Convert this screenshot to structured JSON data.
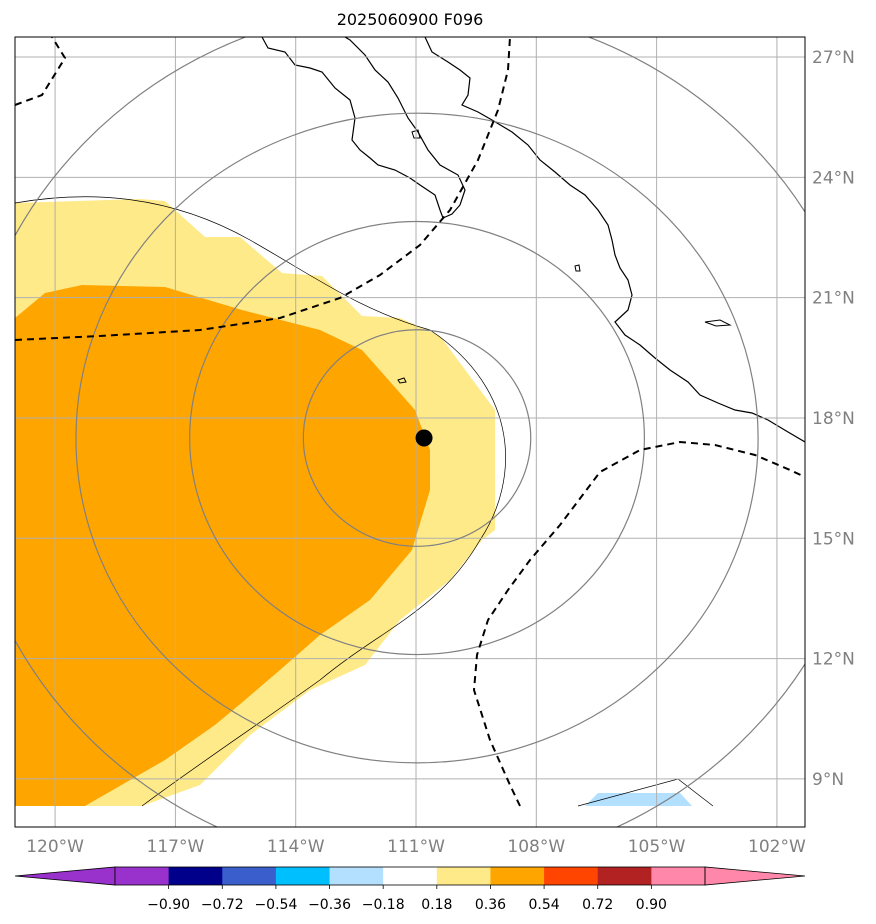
{
  "title": "2025060900 F096",
  "map": {
    "lon_range": [
      -121,
      -101.3
    ],
    "lat_range": [
      7.8,
      27.5
    ],
    "lon_ticks": [
      {
        "value": -120,
        "label": "120°W"
      },
      {
        "value": -117,
        "label": "117°W"
      },
      {
        "value": -114,
        "label": "114°W"
      },
      {
        "value": -111,
        "label": "111°W"
      },
      {
        "value": -108,
        "label": "108°W"
      },
      {
        "value": -105,
        "label": "105°W"
      },
      {
        "value": -102,
        "label": "102°W"
      }
    ],
    "lat_ticks": [
      {
        "value": 27,
        "label": "27°N"
      },
      {
        "value": 24,
        "label": "24°N"
      },
      {
        "value": 21,
        "label": "21°N"
      },
      {
        "value": 18,
        "label": "18°N"
      },
      {
        "value": 15,
        "label": "15°N"
      },
      {
        "value": 12,
        "label": "12°N"
      },
      {
        "value": 9,
        "label": "9°N"
      }
    ],
    "storm_center": {
      "lon": -110.8,
      "lat": 17.5
    },
    "range_rings_radius_deg": [
      2.7,
      5.4,
      8.1,
      10.8
    ],
    "colors": {
      "orange": "#ffa500",
      "light_yellow": "#ffea8a",
      "light_blue": "#b3e0ff",
      "ring": "#808080",
      "tick_label": "#808080"
    }
  },
  "colorbar": {
    "ticks": [
      "−0.90",
      "−0.72",
      "−0.54",
      "−0.36",
      "−0.18",
      "0.18",
      "0.36",
      "0.54",
      "0.72",
      "0.90"
    ],
    "colors": [
      "#9932cc",
      "#9932cc",
      "#00008b",
      "#3a5fcd",
      "#00bfff",
      "#b3e0ff",
      "#ffffff",
      "#ffea8a",
      "#ffa500",
      "#ff4500",
      "#b22222",
      "#ff88aa",
      "#ff88aa"
    ]
  }
}
